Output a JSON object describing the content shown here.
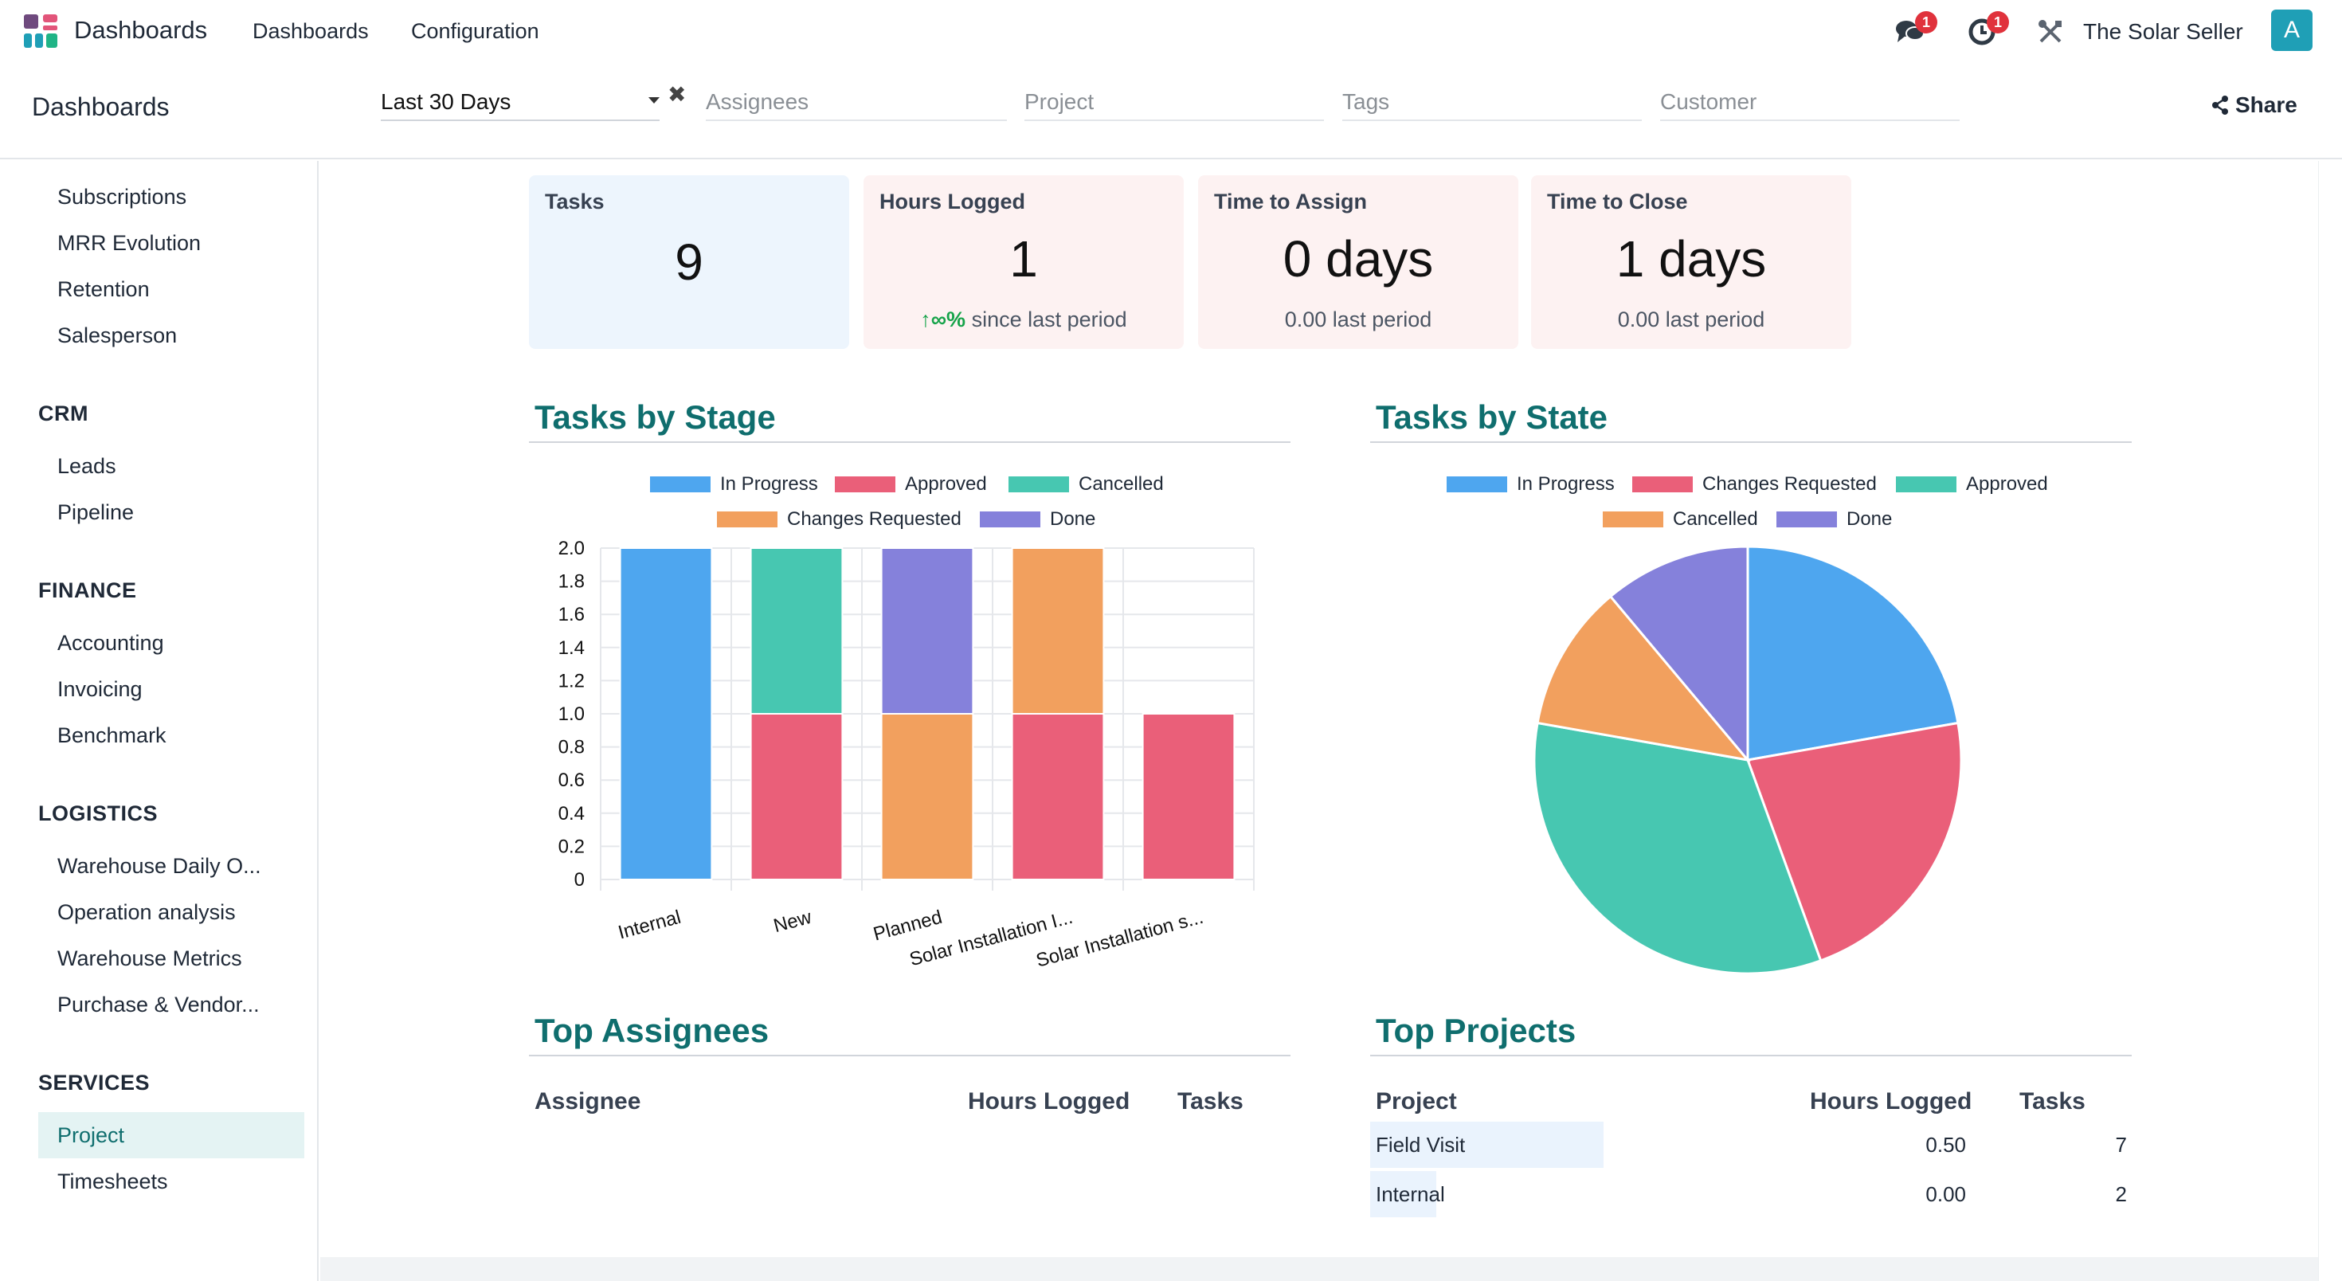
{
  "navbar": {
    "app_title": "Dashboards",
    "menus": [
      "Dashboards",
      "Configuration"
    ],
    "messages_badge": "1",
    "activities_badge": "1",
    "company": "The Solar Seller",
    "avatar_letter": "A"
  },
  "control_panel": {
    "breadcrumb": "Dashboards",
    "date_filter": "Last 30 Days",
    "clear_icon": "✖",
    "filters": {
      "assignees": "Assignees",
      "project": "Project",
      "tags": "Tags",
      "customer": "Customer"
    },
    "share_label": "Share"
  },
  "sidebar": {
    "top_items": [
      "Subscriptions",
      "MRR Evolution",
      "Retention",
      "Salesperson"
    ],
    "crm": {
      "heading": "CRM",
      "items": [
        "Leads",
        "Pipeline"
      ]
    },
    "finance": {
      "heading": "FINANCE",
      "items": [
        "Accounting",
        "Invoicing",
        "Benchmark"
      ]
    },
    "logistics": {
      "heading": "LOGISTICS",
      "items": [
        "Warehouse Daily O...",
        "Operation analysis",
        "Warehouse Metrics",
        "Purchase & Vendor..."
      ]
    },
    "services": {
      "heading": "SERVICES",
      "items": [
        "Project",
        "Timesheets"
      ],
      "active": "Project"
    }
  },
  "kpis": [
    {
      "title": "Tasks",
      "value": "9",
      "sub": "",
      "bg": "#edf5fd"
    },
    {
      "title": "Hours Logged",
      "value": "1",
      "sub_trend": "↑∞%",
      "sub": "since last period",
      "bg": "#fdf2f2"
    },
    {
      "title": "Time to Assign",
      "value": "0 days",
      "sub": "0.00 last period",
      "bg": "#fdf2f2"
    },
    {
      "title": "Time to Close",
      "value": "1 days",
      "sub": "0.00 last period",
      "bg": "#fdf2f2"
    }
  ],
  "colors": {
    "blue": "#4ea6ef",
    "red": "#ea5f79",
    "teal": "#47c7b1",
    "orange": "#f2a05e",
    "purple": "#8581db",
    "accent": "#0f6e6e"
  },
  "sections": {
    "stage": "Tasks by Stage",
    "state": "Tasks by State",
    "assignees": "Top Assignees",
    "projects": "Top Projects"
  },
  "chart_data": [
    {
      "type": "bar",
      "stacked": true,
      "title": "Tasks by Stage",
      "categories": [
        "Internal",
        "New",
        "Planned",
        "Solar Installation I...",
        "Solar Installation s..."
      ],
      "series": [
        {
          "name": "In Progress",
          "color": "#4ea6ef",
          "values": [
            2,
            0,
            0,
            0,
            0
          ]
        },
        {
          "name": "Approved",
          "color": "#ea5f79",
          "values": [
            0,
            1,
            0,
            1,
            1
          ]
        },
        {
          "name": "Cancelled",
          "color": "#47c7b1",
          "values": [
            0,
            1,
            0,
            0,
            0
          ]
        },
        {
          "name": "Changes Requested",
          "color": "#f2a05e",
          "values": [
            0,
            0,
            1,
            1,
            0
          ]
        },
        {
          "name": "Done",
          "color": "#8581db",
          "values": [
            0,
            0,
            1,
            0,
            0
          ]
        }
      ],
      "ylim": [
        0,
        2
      ],
      "yticks": [
        "2.0",
        "1.8",
        "1.6",
        "1.4",
        "1.2",
        "1.0",
        "0.8",
        "0.6",
        "0.4",
        "0.2",
        "0"
      ],
      "grid": true,
      "legend": "top"
    },
    {
      "type": "pie",
      "title": "Tasks by State",
      "slices": [
        {
          "label": "In Progress",
          "value": 2,
          "color": "#4ea6ef"
        },
        {
          "label": "Changes Requested",
          "value": 2,
          "color": "#ea5f79"
        },
        {
          "label": "Approved",
          "value": 3,
          "color": "#47c7b1"
        },
        {
          "label": "Cancelled",
          "value": 1,
          "color": "#f2a05e"
        },
        {
          "label": "Done",
          "value": 1,
          "color": "#8581db"
        }
      ],
      "legend": "top"
    }
  ],
  "assignees_table": {
    "headers": [
      "Assignee",
      "Hours Logged",
      "Tasks"
    ],
    "rows": []
  },
  "projects_table": {
    "headers": [
      "Project",
      "Hours Logged",
      "Tasks"
    ],
    "rows": [
      {
        "project": "Field Visit",
        "hours": "0.50",
        "tasks": "7",
        "share": 0.78
      },
      {
        "project": "Internal",
        "hours": "0.00",
        "tasks": "2",
        "share": 0.22
      }
    ]
  }
}
